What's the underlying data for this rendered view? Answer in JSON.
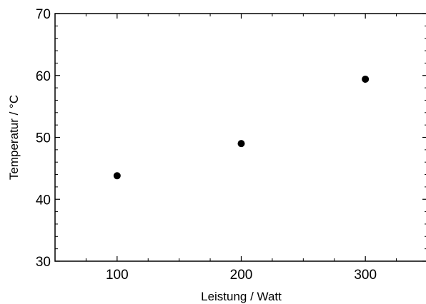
{
  "chart_data": {
    "type": "scatter",
    "xlabel": "Leistung / Watt",
    "ylabel": "Temperatur / °C",
    "xlim": [
      50,
      350
    ],
    "ylim": [
      30,
      70
    ],
    "x_ticks": [
      100,
      200,
      300
    ],
    "y_ticks": [
      30,
      40,
      50,
      60,
      70
    ],
    "grid": false,
    "points": [
      {
        "x": 100,
        "y": 43.8
      },
      {
        "x": 200,
        "y": 49.0
      },
      {
        "x": 300,
        "y": 59.4
      }
    ],
    "marker_color": "#000000"
  }
}
